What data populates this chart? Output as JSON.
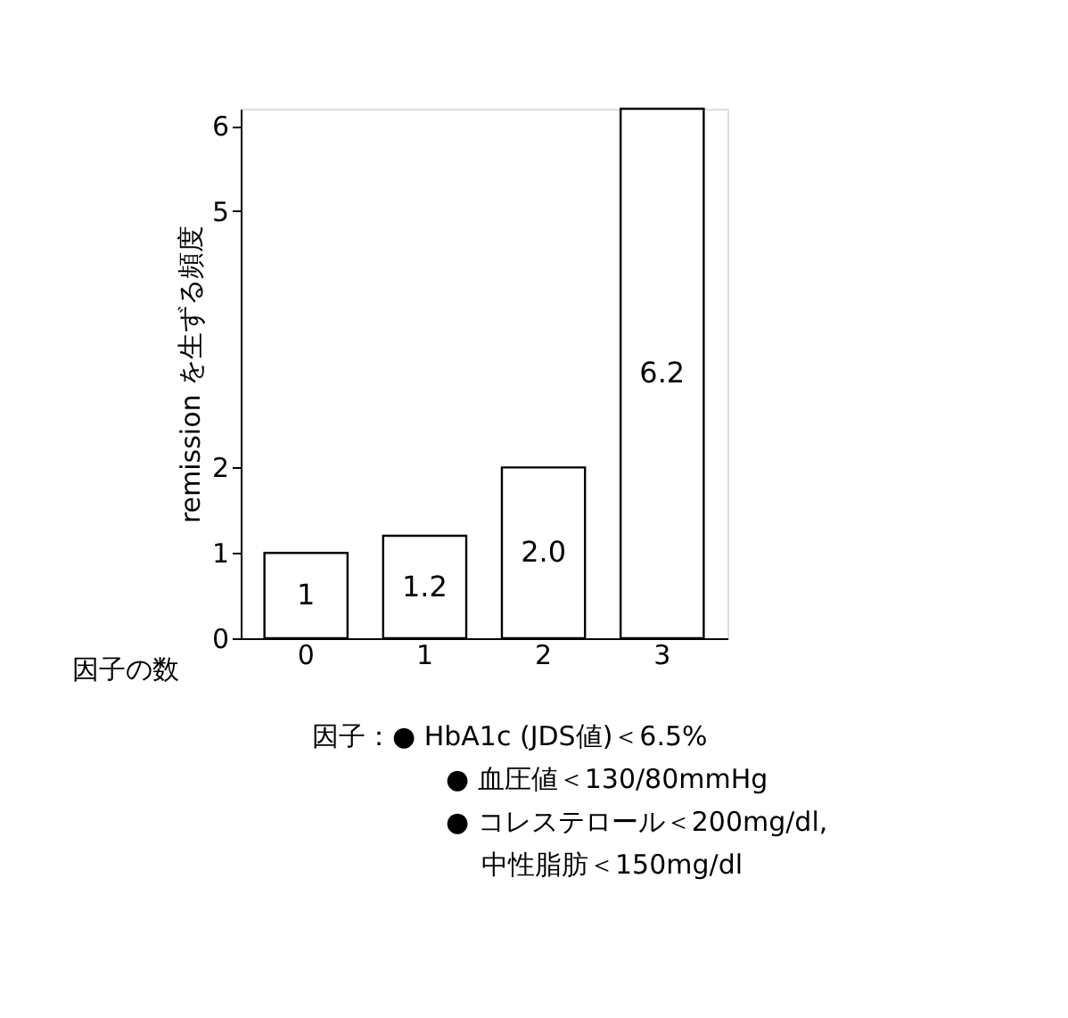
{
  "chart_data": {
    "type": "bar",
    "xlabel": "因子の数",
    "ylabel": "remission を生ずる頻度",
    "categories": [
      "0",
      "1",
      "2",
      "3"
    ],
    "values": [
      1,
      1.2,
      2.0,
      6.2
    ],
    "value_labels": [
      "1",
      "1.2",
      "2.0",
      "6.2"
    ],
    "color": "#ffffff",
    "ylim": [
      0,
      6.2
    ],
    "yticks": [
      0,
      1,
      2,
      5,
      6
    ],
    "grid": false,
    "annotations": [
      "因子：● HbA1c (JDS値)＜6.5%",
      "● 血圧値＜130/80mmHg",
      "● コレステロール＜200mg/dl,",
      "中性脂肪＜150mg/dl"
    ]
  }
}
